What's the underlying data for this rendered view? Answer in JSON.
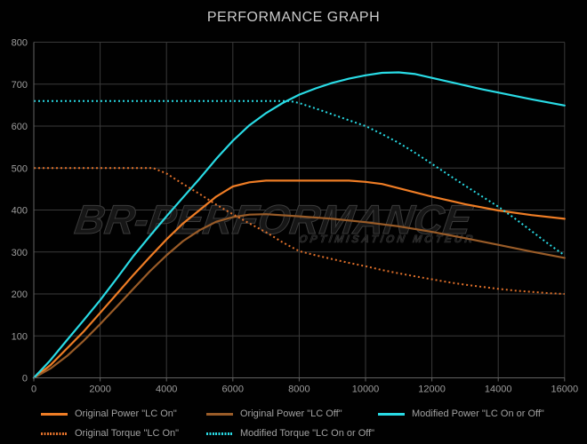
{
  "title": "PERFORMANCE GRAPH",
  "watermark": {
    "line1": "BR-PERFORMANCE",
    "line2": "OPTIMISATION MOTEUR"
  },
  "colors": {
    "background": "#010101",
    "grid": "#3a3a3a",
    "axis": "#626262",
    "tick_text": "#9d9d9d",
    "title_text": "#cbcbcb",
    "legend_text": "#a2a2a2"
  },
  "chart_data": {
    "type": "line",
    "title": "PERFORMANCE GRAPH",
    "xlabel": "",
    "ylabel": "",
    "xlim": [
      0,
      16000
    ],
    "ylim": [
      0,
      800
    ],
    "x_ticks": [
      0,
      2000,
      4000,
      6000,
      8000,
      10000,
      12000,
      14000,
      16000
    ],
    "y_ticks": [
      0,
      100,
      200,
      300,
      400,
      500,
      600,
      700,
      800
    ],
    "grid": true,
    "legend_position": "bottom",
    "series": [
      {
        "name": "Original Power \"LC On\"",
        "color": "#ef7d25",
        "style": "solid",
        "points": [
          [
            0,
            0
          ],
          [
            500,
            30
          ],
          [
            1000,
            70
          ],
          [
            1500,
            110
          ],
          [
            2000,
            155
          ],
          [
            2500,
            200
          ],
          [
            3000,
            245
          ],
          [
            3500,
            288
          ],
          [
            4000,
            330
          ],
          [
            4500,
            368
          ],
          [
            5000,
            400
          ],
          [
            5500,
            432
          ],
          [
            6000,
            456
          ],
          [
            6500,
            466
          ],
          [
            7000,
            470
          ],
          [
            8000,
            470
          ],
          [
            9000,
            470
          ],
          [
            9500,
            470
          ],
          [
            10000,
            467
          ],
          [
            10500,
            462
          ],
          [
            11000,
            452
          ],
          [
            11500,
            442
          ],
          [
            12000,
            432
          ],
          [
            13000,
            414
          ],
          [
            14000,
            399
          ],
          [
            15000,
            388
          ],
          [
            16000,
            379
          ]
        ]
      },
      {
        "name": "Original Power \"LC Off\"",
        "color": "#9a5c28",
        "style": "solid",
        "points": [
          [
            0,
            0
          ],
          [
            500,
            22
          ],
          [
            1000,
            52
          ],
          [
            1500,
            88
          ],
          [
            2000,
            128
          ],
          [
            2500,
            170
          ],
          [
            3000,
            212
          ],
          [
            3500,
            254
          ],
          [
            4000,
            292
          ],
          [
            4500,
            326
          ],
          [
            5000,
            352
          ],
          [
            5500,
            372
          ],
          [
            6000,
            383
          ],
          [
            6500,
            389
          ],
          [
            7000,
            390
          ],
          [
            8000,
            385
          ],
          [
            9000,
            379
          ],
          [
            10000,
            371
          ],
          [
            11000,
            361
          ],
          [
            12000,
            348
          ],
          [
            13000,
            333
          ],
          [
            14000,
            317
          ],
          [
            15000,
            301
          ],
          [
            16000,
            286
          ]
        ]
      },
      {
        "name": "Modified Power \"LC On or Off\"",
        "color": "#29dbe5",
        "style": "solid",
        "points": [
          [
            0,
            0
          ],
          [
            500,
            42
          ],
          [
            1000,
            90
          ],
          [
            1500,
            137
          ],
          [
            2000,
            185
          ],
          [
            2500,
            237
          ],
          [
            3000,
            290
          ],
          [
            3500,
            338
          ],
          [
            4000,
            385
          ],
          [
            4500,
            430
          ],
          [
            5000,
            475
          ],
          [
            5500,
            522
          ],
          [
            6000,
            565
          ],
          [
            6500,
            602
          ],
          [
            7000,
            631
          ],
          [
            7500,
            655
          ],
          [
            8000,
            675
          ],
          [
            8500,
            690
          ],
          [
            9000,
            703
          ],
          [
            9500,
            713
          ],
          [
            10000,
            721
          ],
          [
            10500,
            727
          ],
          [
            11000,
            728
          ],
          [
            11500,
            724
          ],
          [
            12000,
            715
          ],
          [
            12500,
            706
          ],
          [
            13000,
            697
          ],
          [
            13500,
            688
          ],
          [
            14000,
            680
          ],
          [
            15000,
            664
          ],
          [
            16000,
            649
          ]
        ]
      },
      {
        "name": "Original Torque \"LC On\"",
        "color": "#e0702a",
        "style": "dotted",
        "points": [
          [
            0,
            500
          ],
          [
            3600,
            500
          ],
          [
            4000,
            487
          ],
          [
            4500,
            462
          ],
          [
            5000,
            438
          ],
          [
            5500,
            413
          ],
          [
            6000,
            390
          ],
          [
            6500,
            368
          ],
          [
            7000,
            347
          ],
          [
            7500,
            323
          ],
          [
            8000,
            302
          ],
          [
            8500,
            292
          ],
          [
            9000,
            283
          ],
          [
            9500,
            274
          ],
          [
            10000,
            266
          ],
          [
            10500,
            257
          ],
          [
            11000,
            249
          ],
          [
            11500,
            242
          ],
          [
            12000,
            235
          ],
          [
            12500,
            228
          ],
          [
            13000,
            222
          ],
          [
            13500,
            217
          ],
          [
            14000,
            212
          ],
          [
            14500,
            208
          ],
          [
            15000,
            205
          ],
          [
            15500,
            202
          ],
          [
            16000,
            200
          ]
        ]
      },
      {
        "name": "Modified Torque \"LC On or Off\"",
        "color": "#29dbe5",
        "style": "dotted",
        "points": [
          [
            0,
            660
          ],
          [
            7700,
            660
          ],
          [
            8000,
            655
          ],
          [
            8500,
            642
          ],
          [
            9000,
            628
          ],
          [
            9500,
            614
          ],
          [
            10000,
            600
          ],
          [
            10500,
            581
          ],
          [
            11000,
            560
          ],
          [
            11500,
            536
          ],
          [
            12000,
            510
          ],
          [
            12500,
            484
          ],
          [
            13000,
            458
          ],
          [
            13500,
            433
          ],
          [
            14000,
            408
          ],
          [
            14500,
            380
          ],
          [
            15000,
            350
          ],
          [
            15500,
            320
          ],
          [
            16000,
            292
          ]
        ]
      }
    ]
  }
}
